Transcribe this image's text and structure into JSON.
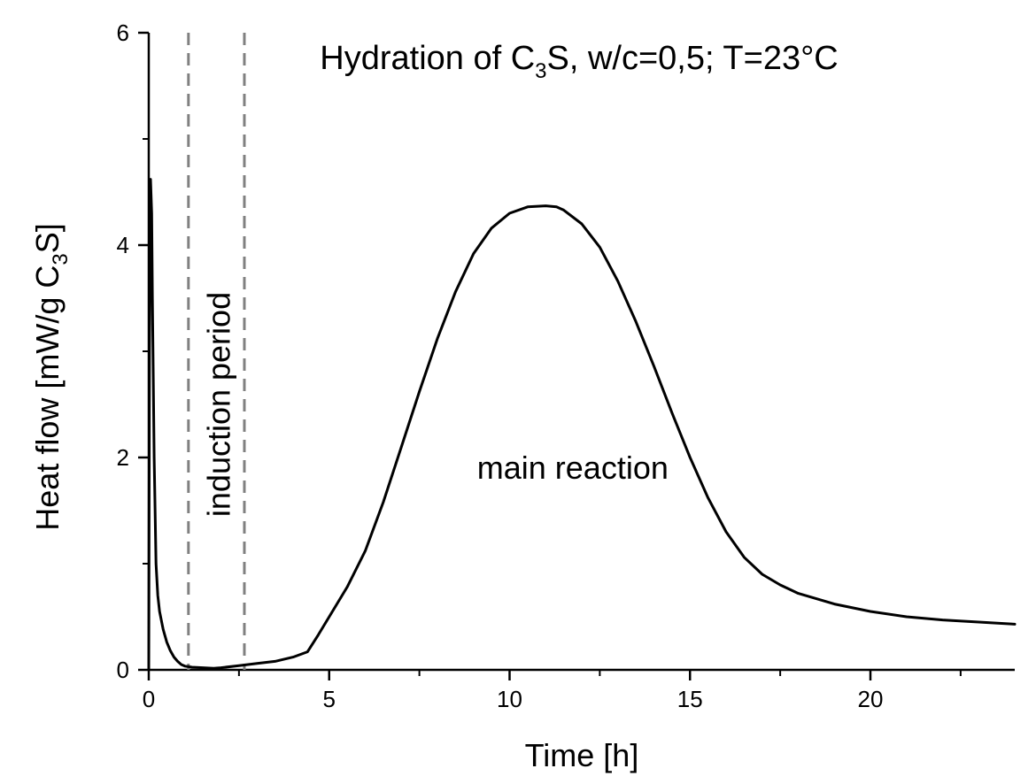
{
  "chart_data": {
    "type": "line",
    "title_parts": [
      "Hydration of C",
      "3",
      "S, w/c=0,5; T=23°C"
    ],
    "xlabel": "Time [h]",
    "ylabel_parts": [
      "Heat flow [mW/g C",
      "3",
      "S]"
    ],
    "xlim": [
      0,
      24
    ],
    "ylim": [
      0,
      6
    ],
    "x_major_ticks": [
      0,
      5,
      10,
      15,
      20
    ],
    "x_minor_ticks": [
      2.5,
      7.5,
      12.5,
      17.5,
      22.5
    ],
    "y_major_ticks": [
      0,
      2,
      4,
      6
    ],
    "y_minor_ticks": [
      1,
      3,
      5
    ],
    "grid": false,
    "legend": "none",
    "line_color": "#000000",
    "marker_line_color": "#808080",
    "vertical_markers": [
      1.1,
      2.65
    ],
    "annotations": [
      {
        "text": "induction period",
        "x": 1.95,
        "y": 2.5,
        "rotation": -90
      },
      {
        "text": "main reaction",
        "x": 11.75,
        "y": 1.8,
        "rotation": 0
      }
    ],
    "series": [
      {
        "x": [
          0,
          0.02,
          0.05,
          0.08,
          0.1,
          0.15,
          0.2,
          0.25,
          0.3,
          0.4,
          0.5,
          0.6,
          0.7,
          0.8,
          0.9,
          1.0,
          1.2,
          1.5,
          1.8,
          2.0,
          2.5,
          3.0,
          3.5,
          4.0,
          4.4,
          4.7,
          5.0,
          5.5,
          6.0,
          6.5,
          7.0,
          7.5,
          8.0,
          8.5,
          9.0,
          9.5,
          10.0,
          10.5,
          11.0,
          11.3,
          11.5,
          12.0,
          12.5,
          13.0,
          13.5,
          14.0,
          14.5,
          15.0,
          15.5,
          16.0,
          16.5,
          17.0,
          17.5,
          18.0,
          19.0,
          20.0,
          21.0,
          22.0,
          23.0,
          24.0
        ],
        "values": [
          0.0,
          3.0,
          4.62,
          4.3,
          3.5,
          2.0,
          1.0,
          0.7,
          0.55,
          0.38,
          0.26,
          0.18,
          0.12,
          0.08,
          0.05,
          0.035,
          0.025,
          0.02,
          0.015,
          0.02,
          0.04,
          0.06,
          0.08,
          0.12,
          0.17,
          0.33,
          0.5,
          0.78,
          1.12,
          1.58,
          2.1,
          2.62,
          3.12,
          3.56,
          3.92,
          4.16,
          4.3,
          4.36,
          4.37,
          4.36,
          4.33,
          4.2,
          3.98,
          3.66,
          3.28,
          2.86,
          2.42,
          2.0,
          1.62,
          1.3,
          1.06,
          0.9,
          0.8,
          0.72,
          0.62,
          0.55,
          0.5,
          0.47,
          0.45,
          0.43
        ]
      }
    ]
  }
}
